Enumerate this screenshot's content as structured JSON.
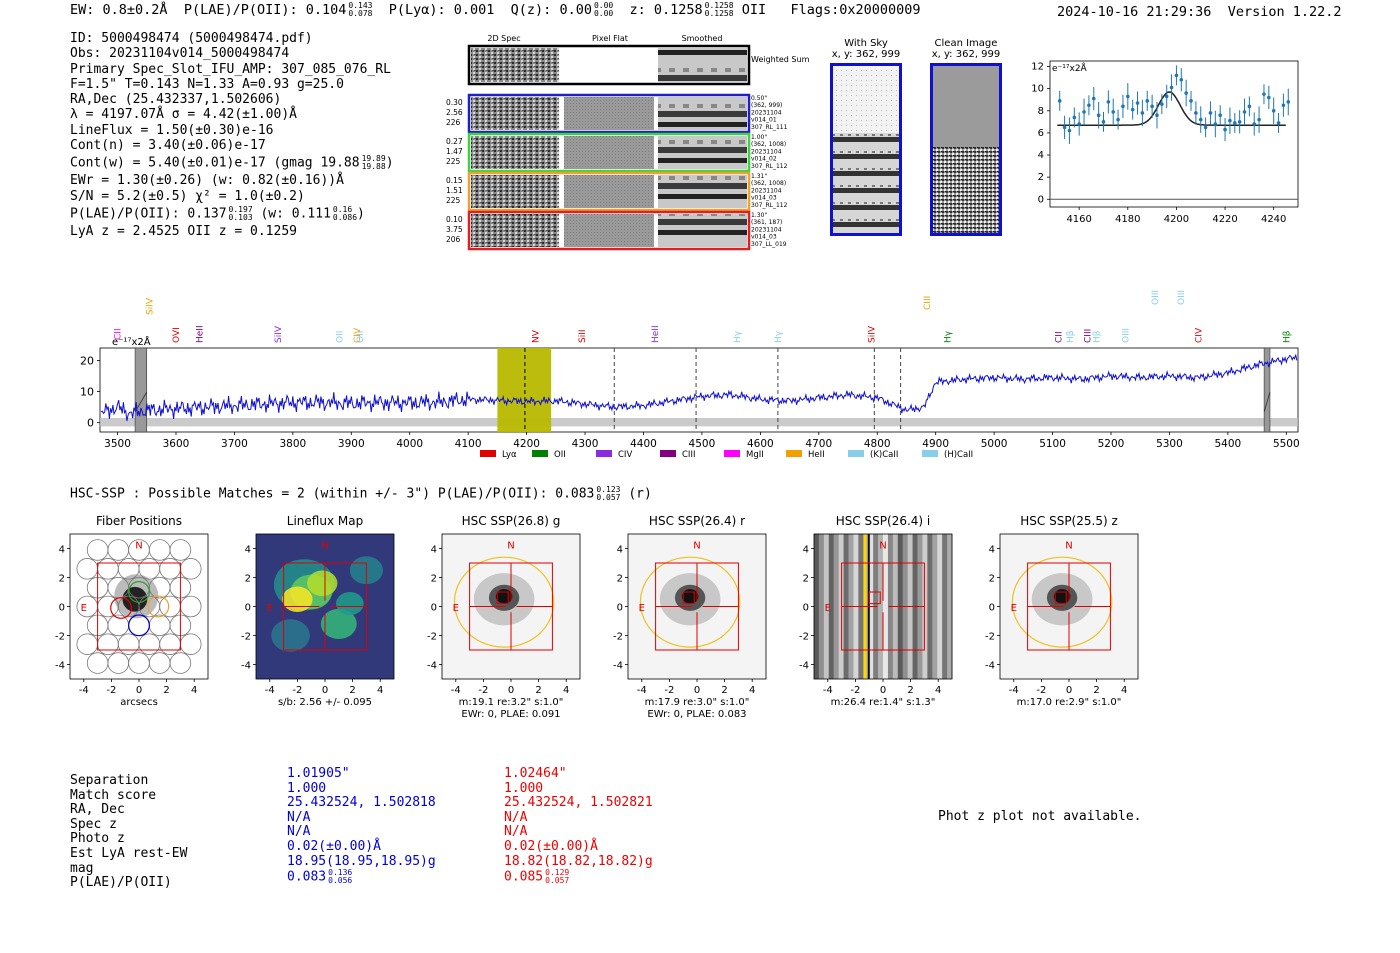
{
  "header": {
    "ew": "EW: 0.8±0.2Å",
    "plae_label": "P(LAE)/P(OII): 0.104",
    "plae_hi": "0.143",
    "plae_lo": "0.078",
    "plya": "P(Lyα): 0.001",
    "qz_label": "Q(z): 0.00",
    "qz_hi": "0.00",
    "qz_lo": "0.00",
    "z_label": "z: 0.1258",
    "z_hi": "0.1258",
    "z_lo": "0.1258",
    "z_line": "OII",
    "flags": "Flags:0x20000009",
    "timestamp": "2024-10-16 21:29:36",
    "version": "Version 1.22.2"
  },
  "info": {
    "id": "ID: 5000498474 (5000498474.pdf)",
    "obs": "Obs: 20231104v014_5000498474",
    "primary": "Primary Spec_Slot_IFU_AMP: 307_085_076_RL",
    "params": "F=1.5\"  T=0.143  N=1.33  A=0.93  g=25.0",
    "radec": "RA,Dec (25.432337,1.502606)",
    "lambda": "λ = 4197.07Å   σ = 4.42(±1.00)Å",
    "lineflux": "LineFlux = 1.50(±0.30)e-16",
    "contn": "Cont(n) = 3.40(±0.06)e-17",
    "contw": "Cont(w) = 5.40(±0.01)e-17 (gmag 19.88",
    "contw_hi": "19.89",
    "contw_lo": "19.88",
    "ewr": "EWr = 1.30(±0.26) (w: 0.82(±0.16))Å",
    "sn": "S/N = 5.2(±0.5)  χ² = 1.0(±0.2)",
    "plae": "P(LAE)/P(OII): 0.137",
    "plae_hi": "0.197",
    "plae_lo": "0.103",
    "plae_w": "(w: 0.111",
    "plae_w_hi": "0.16",
    "plae_w_lo": "0.086",
    "lyaz": "LyA z = 2.4525   OII z = 0.1259"
  },
  "cutouts": {
    "col_labels": [
      "2D Spec",
      "Pixel Flat",
      "Smoothed"
    ],
    "weighted_label": "Weighted Sum",
    "rows": [
      {
        "left": [
          "0.30",
          "2.56",
          "226"
        ],
        "right": [
          "0.50\"",
          "(362, 999)",
          "20231104",
          "v014_01",
          "307_RL_111"
        ],
        "color": "#1f1fc8"
      },
      {
        "left": [
          "0.27",
          "1.47",
          "225"
        ],
        "right": [
          "1.00\"",
          "(362, 1008)",
          "20231104",
          "v014_02",
          "307_RL_112"
        ],
        "color": "#3fd23f"
      },
      {
        "left": [
          "0.15",
          "1.51",
          "225"
        ],
        "right": [
          "1.31\"",
          "(362, 1008)",
          "20231104",
          "v014_03",
          "307_RL_112"
        ],
        "color": "#f0a030"
      },
      {
        "left": [
          "0.10",
          "3.75",
          "206"
        ],
        "right": [
          "1.30\"",
          "(361, 187)",
          "20231104",
          "v014_03",
          "307_LL_019"
        ],
        "color": "#e02020"
      }
    ],
    "with_sky_title": "With Sky",
    "with_sky_xy": "x, y: 362, 999",
    "clean_title": "Clean Image",
    "clean_xy": "x, y: 362, 999"
  },
  "zoom_plot": {
    "unit_label": "e⁻¹⁷x2Å",
    "x_ticks": [
      "4160",
      "4180",
      "4200",
      "4220",
      "4240"
    ],
    "y_ticks": [
      "0",
      "2",
      "4",
      "6",
      "8",
      "10",
      "12"
    ]
  },
  "spectrum": {
    "unit_label": "e⁻¹⁷x2Å",
    "x_ticks": [
      "3500",
      "3600",
      "3700",
      "3800",
      "3900",
      "4000",
      "4100",
      "4200",
      "4300",
      "4400",
      "4500",
      "4600",
      "4700",
      "4800",
      "4900",
      "5000",
      "5100",
      "5200",
      "5300",
      "5400",
      "5500"
    ],
    "y_ticks": [
      "0",
      "10",
      "20"
    ],
    "line_labels": [
      {
        "label": "CII",
        "color": "#ff00ff"
      },
      {
        "label": "SiIV",
        "color": "#f0a000"
      },
      {
        "label": "OVI",
        "color": "#e00000"
      },
      {
        "label": "HeII",
        "color": "#800080"
      },
      {
        "label": "SiIV",
        "color": "#8a2be2"
      },
      {
        "label": "OII",
        "color": "#87ceeb"
      },
      {
        "label": "CIV",
        "color": "#f0a000"
      },
      {
        "label": "OII",
        "color": "#87ceeb"
      },
      {
        "label": "NV",
        "color": "#e00000"
      },
      {
        "label": "SiII",
        "color": "#e00000"
      },
      {
        "label": "HeII",
        "color": "#8a2be2"
      },
      {
        "label": "Hγ",
        "color": "#87ceeb"
      },
      {
        "label": "Hγ",
        "color": "#87ceeb"
      },
      {
        "label": "SiIV",
        "color": "#e00000"
      },
      {
        "label": "CIII",
        "color": "#f0a000"
      },
      {
        "label": "Hγ",
        "color": "#008000"
      },
      {
        "label": "CII",
        "color": "#800080"
      },
      {
        "label": "Hβ",
        "color": "#87ceeb"
      },
      {
        "label": "CIII",
        "color": "#800080"
      },
      {
        "label": "Hβ",
        "color": "#87ceeb"
      },
      {
        "label": "OIII",
        "color": "#87ceeb"
      },
      {
        "label": "OIII",
        "color": "#87ceeb"
      },
      {
        "label": "OIII",
        "color": "#87ceeb"
      },
      {
        "label": "CIV",
        "color": "#e00000"
      },
      {
        "label": "Hβ",
        "color": "#008000"
      }
    ],
    "legend": [
      {
        "label": "Lyα",
        "color": "#e00000"
      },
      {
        "label": "OII",
        "color": "#008000"
      },
      {
        "label": "CIV",
        "color": "#8a2be2"
      },
      {
        "label": "CIII",
        "color": "#800080"
      },
      {
        "label": "MgII",
        "color": "#ff00ff"
      },
      {
        "label": "HeII",
        "color": "#f0a000"
      },
      {
        "label": "(K)CaII",
        "color": "#87ceeb"
      },
      {
        "label": "(H)CaII",
        "color": "#87ceeb"
      }
    ]
  },
  "hsc": {
    "title": "HSC-SSP : Possible Matches = 2 (within +/- 3\")  P(LAE)/P(OII): 0.083",
    "title_hi": "0.123",
    "title_lo": "0.057",
    "title_suffix": "(r)",
    "tick_labels": [
      "-4",
      "-2",
      "0",
      "2",
      "4"
    ],
    "panels": [
      {
        "title": "Fiber Positions",
        "caption1": "arcsecs",
        "caption2": ""
      },
      {
        "title": "Lineflux Map",
        "caption1": "s/b: 2.56 +/- 0.095",
        "caption2": ""
      },
      {
        "title": "HSC SSP(26.8) g",
        "caption1": "m:19.1   re:3.2\"  s:1.0\"",
        "caption2": "EWr: 0, PLAE: 0.091"
      },
      {
        "title": "HSC SSP(26.4) r",
        "caption1": "m:17.9   re:3.0\"  s:1.0\"",
        "caption2": "EWr: 0, PLAE: 0.083"
      },
      {
        "title": "HSC SSP(26.4) i",
        "caption1": "m:26.4  re:1.4\"  s:1.3\"",
        "caption2": ""
      },
      {
        "title": "HSC SSP(25.5) z",
        "caption1": "m:17.0   re:2.9\"  s:1.0\"",
        "caption2": ""
      }
    ],
    "north": "N",
    "east": "E"
  },
  "matches": {
    "labels": [
      "Separation",
      "Match score",
      "RA, Dec",
      "Spec z",
      "Photo z",
      "Est LyA rest-EW",
      "mag",
      "P(LAE)/P(OII)"
    ],
    "col1": [
      "1.01905\"",
      "1.000",
      "25.432524, 1.502818",
      "N/A",
      "N/A",
      "0.02(±0.00)Å",
      "18.95(18.95,18.95)g",
      "0.083"
    ],
    "col1_plae_hi": "0.136",
    "col1_plae_lo": "0.056",
    "col2": [
      "1.02464\"",
      "1.000",
      "25.432524, 1.502821",
      "N/A",
      "N/A",
      "0.02(±0.00)Å",
      "18.82(18.82,18.82)g",
      "0.085"
    ],
    "col2_plae_hi": "0.129",
    "col2_plae_lo": "0.057",
    "col1_color": "#0000dd",
    "col2_color": "#ee0000",
    "photz_msg": "Phot z plot not available."
  },
  "chart_data": [
    {
      "type": "scatter",
      "title": "",
      "ylabel": "e⁻¹⁷x2Å",
      "xlim": [
        4148,
        4250
      ],
      "ylim": [
        -0.7,
        12.5
      ],
      "x": [
        4152,
        4154,
        4156,
        4158,
        4160,
        4162,
        4164,
        4166,
        4168,
        4170,
        4172,
        4174,
        4176,
        4178,
        4180,
        4182,
        4184,
        4186,
        4188,
        4190,
        4192,
        4194,
        4196,
        4198,
        4200,
        4202,
        4204,
        4206,
        4208,
        4210,
        4212,
        4214,
        4216,
        4218,
        4220,
        4222,
        4224,
        4226,
        4228,
        4230,
        4232,
        4234,
        4236,
        4238,
        4240,
        4242,
        4244,
        4246
      ],
      "y": [
        8.9,
        6.5,
        6.2,
        7.4,
        6.8,
        7.9,
        8.5,
        9.1,
        7.6,
        7.0,
        8.8,
        7.9,
        7.2,
        8.4,
        9.3,
        8.1,
        8.7,
        7.8,
        8.9,
        8.4,
        7.6,
        8.6,
        9.3,
        10.1,
        11.2,
        10.8,
        9.6,
        8.9,
        7.8,
        7.2,
        6.5,
        7.8,
        6.8,
        7.6,
        6.3,
        7.1,
        6.9,
        7.0,
        7.9,
        8.4,
        6.8,
        7.2,
        9.5,
        9.2,
        8.0,
        6.9,
        8.5,
        8.8
      ],
      "fit_baseline": 6.7,
      "fit_peak": 9.7,
      "fit_center": 4197.07,
      "fit_sigma": 4.42
    },
    {
      "type": "line",
      "title": "",
      "ylabel": "e⁻¹⁷x2Å",
      "xlim": [
        3470,
        5520
      ],
      "ylim": [
        -3,
        24
      ],
      "anchors_x": [
        3470,
        3500,
        3520,
        3550,
        3600,
        3650,
        3700,
        3750,
        3800,
        3850,
        3900,
        3950,
        4000,
        4050,
        4100,
        4150,
        4200,
        4250,
        4300,
        4350,
        4400,
        4450,
        4500,
        4550,
        4600,
        4650,
        4700,
        4750,
        4800,
        4850,
        4880,
        4900,
        4950,
        5000,
        5050,
        5100,
        5150,
        5200,
        5250,
        5300,
        5350,
        5400,
        5450,
        5500,
        5520
      ],
      "anchors_y": [
        3,
        5,
        3,
        4,
        4.5,
        5,
        5.5,
        6,
        6.5,
        6.5,
        6.2,
        6.5,
        6.4,
        6.6,
        7.5,
        7.2,
        6.8,
        7,
        6,
        5,
        5.5,
        7,
        8.5,
        9,
        7.5,
        7,
        8,
        9,
        8,
        4,
        5,
        13,
        14,
        14.5,
        14,
        14.5,
        14,
        15,
        14.5,
        15,
        14.5,
        16,
        18.5,
        20.5,
        21
      ],
      "highlight_band": [
        4150,
        4242
      ],
      "emission_line": 4197.07,
      "marker_lines": [
        4350,
        4490,
        4630,
        4795,
        4840
      ],
      "gray_bands": [
        [
          3530,
          3550
        ],
        [
          5462,
          5472
        ]
      ]
    }
  ]
}
